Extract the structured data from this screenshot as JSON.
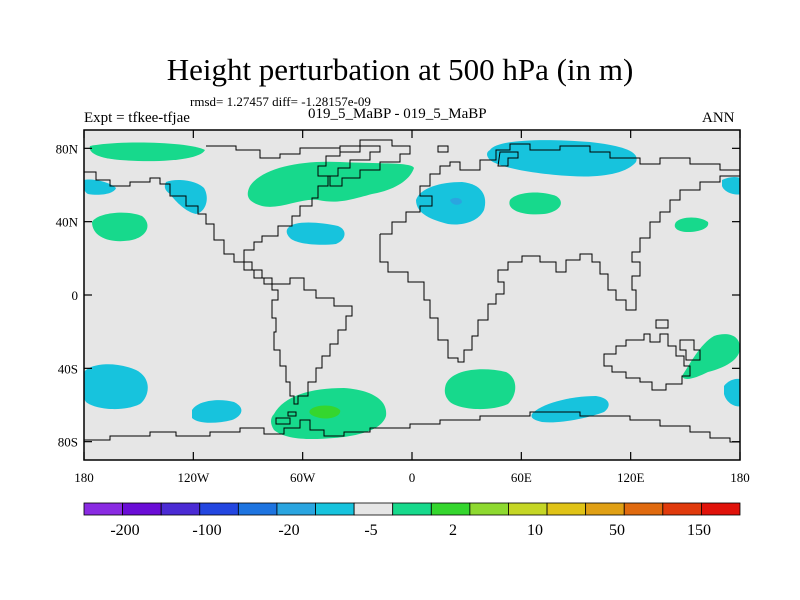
{
  "plot": {
    "title": "Height perturbation at 500 hPa (in m)",
    "stats": "rmsd= 1.27457 diff= -1.28157e-09",
    "expt": "Expt = tfkee-tfjae",
    "runs": "019_5_MaBP - 019_5_MaBP",
    "period": "ANN"
  },
  "axes": {
    "lon_labels": [
      "180",
      "120W",
      "60W",
      "0",
      "60E",
      "120E",
      "180"
    ],
    "lon_values": [
      -180,
      -120,
      -60,
      0,
      60,
      120,
      180
    ],
    "lat_labels": [
      "80N",
      "40N",
      "0",
      "40S",
      "80S"
    ],
    "lat_values": [
      80,
      40,
      0,
      -40,
      -80
    ],
    "lon_range": [
      -180,
      180
    ],
    "lat_range": [
      -90,
      90
    ]
  },
  "colorbar": {
    "colors": [
      "#8a2be2",
      "#6a0dd6",
      "#4b2bd4",
      "#2346e0",
      "#1e74e0",
      "#2aa5e0",
      "#17c3dd",
      "#e6e6e6",
      "#17d98c",
      "#35d62e",
      "#8ed930",
      "#c5d625",
      "#e0c317",
      "#e0a015",
      "#e06a0f",
      "#e03a0c",
      "#e0120a"
    ],
    "labels": [
      "-200",
      "-100",
      "-20",
      "-5",
      "2",
      "10",
      "50",
      "150"
    ]
  },
  "colors": {
    "background": "#e6e6e6",
    "positive_light": "#17d98c",
    "positive_mid": "#35d62e",
    "negative_light": "#17c3dd",
    "negative_mid": "#2aa5e0"
  }
}
